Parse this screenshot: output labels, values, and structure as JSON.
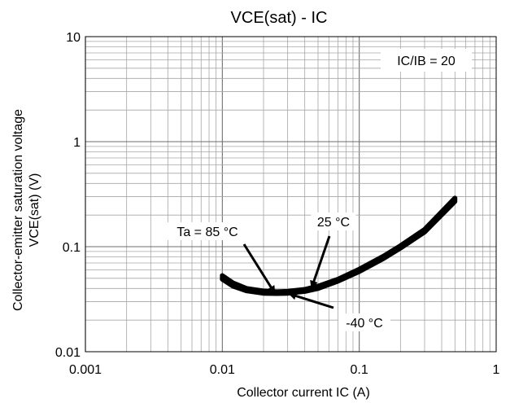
{
  "chart_data": {
    "type": "line",
    "title": "VCE(sat) - IC",
    "xlabel": "Collector current IC (A)",
    "ylabel_lines": [
      "Collector-emitter saturation voltage",
      "VCE(sat) (V)"
    ],
    "x_scale": "log",
    "y_scale": "log",
    "xlim": [
      0.001,
      1
    ],
    "ylim": [
      0.01,
      10
    ],
    "x_ticks": [
      0.001,
      0.01,
      0.1,
      1
    ],
    "x_tick_labels": [
      "0.001",
      "0.01",
      "0.1",
      "1"
    ],
    "y_ticks": [
      0.01,
      0.1,
      1,
      10
    ],
    "y_tick_labels": [
      "0.01",
      "0.1",
      "1",
      "10"
    ],
    "grid": true,
    "condition_label": "IC/IB = 20",
    "series": [
      {
        "name": "Ta = 85 °C",
        "x": [
          0.01,
          0.012,
          0.015,
          0.02,
          0.025,
          0.03,
          0.04,
          0.05,
          0.07,
          0.1,
          0.15,
          0.2,
          0.3,
          0.5
        ],
        "values": [
          0.049,
          0.042,
          0.038,
          0.036,
          0.0358,
          0.036,
          0.0375,
          0.04,
          0.047,
          0.058,
          0.077,
          0.097,
          0.138,
          0.27
        ]
      },
      {
        "name": "25 °C",
        "x": [
          0.01,
          0.012,
          0.015,
          0.02,
          0.025,
          0.03,
          0.04,
          0.05,
          0.07,
          0.1,
          0.15,
          0.2,
          0.3,
          0.5
        ],
        "values": [
          0.051,
          0.043,
          0.039,
          0.0368,
          0.0365,
          0.0368,
          0.0385,
          0.041,
          0.048,
          0.06,
          0.079,
          0.099,
          0.142,
          0.28
        ]
      },
      {
        "name": "-40 °C",
        "x": [
          0.01,
          0.012,
          0.015,
          0.02,
          0.025,
          0.03,
          0.04,
          0.05,
          0.07,
          0.1,
          0.15,
          0.2,
          0.3,
          0.5
        ],
        "values": [
          0.053,
          0.045,
          0.04,
          0.0378,
          0.0372,
          0.0375,
          0.0392,
          0.042,
          0.049,
          0.061,
          0.081,
          0.102,
          0.146,
          0.29
        ]
      }
    ],
    "annotations": [
      {
        "label": "Ta = 85 °C",
        "point_x": 0.024,
        "point_y": 0.0365
      },
      {
        "label": "25 °C",
        "point_x": 0.045,
        "point_y": 0.041
      },
      {
        "label": "-40 °C",
        "point_x": 0.031,
        "point_y": 0.0355
      }
    ],
    "colors": {
      "line": "#000000",
      "grid": "#808080",
      "frame": "#000000"
    }
  }
}
